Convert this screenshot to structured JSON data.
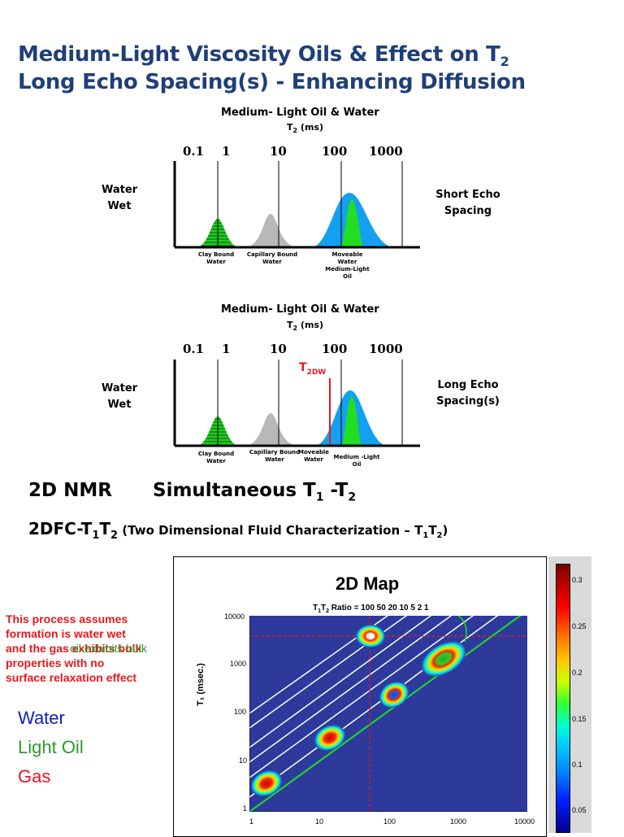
{
  "title_line1": "Medium-Light Viscosity Oils & Effect on T",
  "title_line1_sub": "2",
  "title_line2": "Long Echo Spacing(s) - Enhancing Diffusion",
  "panel1": {
    "caption": "Medium- Light Oil  &  Water",
    "unit": "T",
    "unit_sub": "2",
    "unit_rest": " (ms)",
    "ticks": [
      "0.1",
      "1",
      "10",
      "100",
      "1000"
    ],
    "left_label_1": "Water",
    "left_label_2": "Wet",
    "right_label_1": "Short Echo",
    "right_label_2": "Spacing",
    "peak_clay_1": "Clay Bound",
    "peak_clay_2": "Water",
    "peak_cap_1": "Capillary Bound",
    "peak_cap_2": "Water",
    "peak_move_1": "Moveable",
    "peak_move_2": "Water",
    "peak_move_3": "Medium-Light",
    "peak_move_4": "Oil"
  },
  "panel2": {
    "caption": "Medium- Light Oil  &  Water",
    "unit": "T",
    "unit_sub": "2",
    "unit_rest": " (ms)",
    "ticks": [
      "0.1",
      "1",
      "10",
      "100",
      "1000"
    ],
    "t2dw": "T",
    "t2dw_sub": "2DW",
    "left_label_1": "Water",
    "left_label_2": "Wet",
    "right_label_1": "Long Echo",
    "right_label_2": "Spacing(s)",
    "peak_clay_1": "Clay Bound",
    "peak_clay_2": "Water",
    "peak_cap_1": "Capillary Bound",
    "peak_cap_2": "Water",
    "peak_move_1": "Moveable",
    "peak_move_2": "Water",
    "peak_oil": "Medium -Light Oil"
  },
  "heading_2dnmr": "2D NMR",
  "heading_simul": "Simultaneous T",
  "heading_simul_sub1": "1",
  "heading_simul_mid": " -T",
  "heading_simul_sub2": "2",
  "heading_2dfc": "2DFC-T",
  "heading_2dfc_sub1": "1",
  "heading_2dfc_t": "T",
  "heading_2dfc_sub2": "2",
  "heading_2dfc_paren": " (Two Dimensional Fluid Characterization – T",
  "heading_2dfc_paren_sub1": "1",
  "heading_2dfc_paren_t": "T",
  "heading_2dfc_paren_sub2": "2",
  "heading_2dfc_paren_end": ")",
  "note_lines": [
    "This process assumes",
    "formation is water wet",
    "and the gas exhibits bulk",
    "properties with no",
    "surface relaxation effect"
  ],
  "note_overlap": "oil exhibits bulk",
  "legend": [
    {
      "label": "Water",
      "color": "#1020c8"
    },
    {
      "label": "Light Oil",
      "color": "#2b9a2b"
    },
    {
      "label": "Gas",
      "color": "#e8171c"
    }
  ],
  "map": {
    "title": "2D Map",
    "ratio_label": "T",
    "ratio_sub1": "1",
    "ratio_t": "T",
    "ratio_sub2": "2",
    "ratio_text": " Ratio = 100   50   20    10      5      2    1",
    "ylabel": "T₁ (msec.)",
    "y_ticks": [
      "10000",
      "1000",
      "100",
      "10",
      "1"
    ],
    "x_ticks": [
      "1",
      "10",
      "100",
      "1000",
      "10000"
    ],
    "bg_color": "#2d3a9c"
  },
  "colorbar": {
    "ticks": [
      "0.3",
      "0.25",
      "0.2",
      "0.15",
      "0.1",
      "0.05"
    ]
  }
}
